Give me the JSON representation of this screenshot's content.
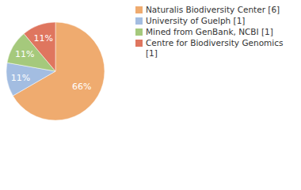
{
  "chart_data": {
    "type": "pie",
    "categories": [
      "Naturalis Biodiversity Center [6]",
      "University of Guelph [1]",
      "Mined from GenBank, NCBI [1]",
      "Centre for Biodiversity Genomics [1]"
    ],
    "values": [
      66,
      11,
      11,
      11
    ],
    "value_labels": [
      "66%",
      "11%",
      "11%",
      "11%"
    ],
    "colors": [
      "#efab6f",
      "#a3bde1",
      "#a5c97c",
      "#df765f"
    ],
    "data_labels": true,
    "legend": "upper right"
  }
}
